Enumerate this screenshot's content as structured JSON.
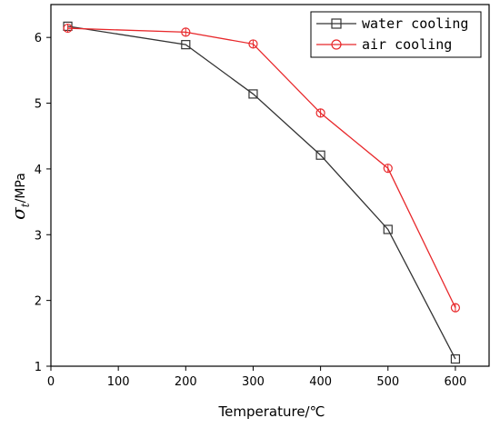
{
  "chart_data": {
    "type": "line",
    "xlabel": "Temperature/℃",
    "ylabel_symbol": "σ",
    "ylabel_subscript": "t",
    "ylabel_unit": "/MPa",
    "xlim": [
      0,
      650
    ],
    "ylim": [
      1,
      6.5
    ],
    "xticks": [
      0,
      100,
      200,
      300,
      400,
      500,
      600
    ],
    "yticks": [
      1,
      2,
      3,
      4,
      5,
      6
    ],
    "grid": false,
    "legend_position": "top-right",
    "series": [
      {
        "name": "water cooling",
        "color": "#333333",
        "marker": "square",
        "x": [
          25,
          200,
          300,
          400,
          500,
          600
        ],
        "y": [
          6.17,
          5.89,
          5.14,
          4.21,
          3.08,
          1.11
        ]
      },
      {
        "name": "air cooling",
        "color": "#e8282b",
        "marker": "circle",
        "x": [
          25,
          200,
          300,
          400,
          500,
          600
        ],
        "y": [
          6.14,
          6.08,
          5.9,
          4.85,
          4.01,
          1.89
        ]
      }
    ]
  }
}
